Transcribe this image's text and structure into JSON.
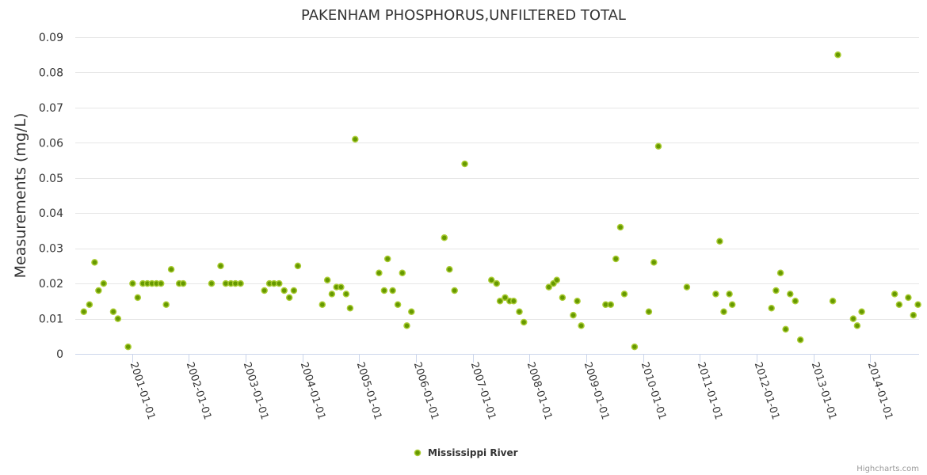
{
  "chart_data": {
    "type": "scatter",
    "title": "PAKENHAM PHOSPHORUS,UNFILTERED TOTAL",
    "ylabel": "Measurements (mg/L)",
    "xlabel": "",
    "ylim": [
      0,
      0.09
    ],
    "yticks": [
      "0",
      "0.01",
      "0.02",
      "0.03",
      "0.04",
      "0.05",
      "0.06",
      "0.07",
      "0.08",
      "0.09"
    ],
    "xlim": [
      2000.0,
      2014.86
    ],
    "xticks": [
      {
        "x": 2001,
        "label": "2001-01-01"
      },
      {
        "x": 2002,
        "label": "2002-01-01"
      },
      {
        "x": 2003,
        "label": "2003-01-01"
      },
      {
        "x": 2004,
        "label": "2004-01-01"
      },
      {
        "x": 2005,
        "label": "2005-01-01"
      },
      {
        "x": 2006,
        "label": "2006-01-01"
      },
      {
        "x": 2007,
        "label": "2007-01-01"
      },
      {
        "x": 2008,
        "label": "2008-01-01"
      },
      {
        "x": 2009,
        "label": "2009-01-01"
      },
      {
        "x": 2010,
        "label": "2010-01-01"
      },
      {
        "x": 2011,
        "label": "2011-01-01"
      },
      {
        "x": 2012,
        "label": "2012-01-01"
      },
      {
        "x": 2013,
        "label": "2013-01-01"
      },
      {
        "x": 2014,
        "label": "2014-01-01"
      }
    ],
    "series": [
      {
        "name": "Mississippi River",
        "color": "#669900",
        "points": [
          [
            2000.15,
            0.012
          ],
          [
            2000.25,
            0.014
          ],
          [
            2000.34,
            0.026
          ],
          [
            2000.41,
            0.018
          ],
          [
            2000.5,
            0.02
          ],
          [
            2000.67,
            0.012
          ],
          [
            2000.75,
            0.01
          ],
          [
            2000.93,
            0.002
          ],
          [
            2001.01,
            0.02
          ],
          [
            2001.1,
            0.016
          ],
          [
            2001.19,
            0.02
          ],
          [
            2001.27,
            0.02
          ],
          [
            2001.35,
            0.02
          ],
          [
            2001.43,
            0.02
          ],
          [
            2001.51,
            0.02
          ],
          [
            2001.6,
            0.014
          ],
          [
            2001.69,
            0.024
          ],
          [
            2001.83,
            0.02
          ],
          [
            2001.9,
            0.02
          ],
          [
            2002.4,
            0.02
          ],
          [
            2002.56,
            0.025
          ],
          [
            2002.65,
            0.02
          ],
          [
            2002.74,
            0.02
          ],
          [
            2002.82,
            0.02
          ],
          [
            2002.91,
            0.02
          ],
          [
            2003.33,
            0.018
          ],
          [
            2003.42,
            0.02
          ],
          [
            2003.5,
            0.02
          ],
          [
            2003.59,
            0.02
          ],
          [
            2003.68,
            0.018
          ],
          [
            2003.77,
            0.016
          ],
          [
            2003.85,
            0.018
          ],
          [
            2003.92,
            0.025
          ],
          [
            2004.35,
            0.014
          ],
          [
            2004.44,
            0.021
          ],
          [
            2004.52,
            0.017
          ],
          [
            2004.6,
            0.019
          ],
          [
            2004.68,
            0.019
          ],
          [
            2004.77,
            0.017
          ],
          [
            2004.84,
            0.013
          ],
          [
            2004.93,
            0.061
          ],
          [
            2005.35,
            0.023
          ],
          [
            2005.44,
            0.018
          ],
          [
            2005.5,
            0.027
          ],
          [
            2005.59,
            0.018
          ],
          [
            2005.68,
            0.014
          ],
          [
            2005.76,
            0.023
          ],
          [
            2005.84,
            0.008
          ],
          [
            2005.92,
            0.012
          ],
          [
            2006.5,
            0.033
          ],
          [
            2006.59,
            0.024
          ],
          [
            2006.68,
            0.018
          ],
          [
            2006.86,
            0.054
          ],
          [
            2007.33,
            0.021
          ],
          [
            2007.42,
            0.02
          ],
          [
            2007.48,
            0.015
          ],
          [
            2007.57,
            0.016
          ],
          [
            2007.65,
            0.015
          ],
          [
            2007.72,
            0.015
          ],
          [
            2007.82,
            0.012
          ],
          [
            2007.9,
            0.009
          ],
          [
            2008.34,
            0.019
          ],
          [
            2008.42,
            0.02
          ],
          [
            2008.48,
            0.021
          ],
          [
            2008.58,
            0.016
          ],
          [
            2008.77,
            0.011
          ],
          [
            2008.84,
            0.015
          ],
          [
            2008.91,
            0.008
          ],
          [
            2009.34,
            0.014
          ],
          [
            2009.43,
            0.014
          ],
          [
            2009.52,
            0.027
          ],
          [
            2009.6,
            0.036
          ],
          [
            2009.67,
            0.017
          ],
          [
            2009.85,
            0.002
          ],
          [
            2010.1,
            0.012
          ],
          [
            2010.19,
            0.026
          ],
          [
            2010.27,
            0.059
          ],
          [
            2010.77,
            0.019
          ],
          [
            2011.28,
            0.017
          ],
          [
            2011.35,
            0.032
          ],
          [
            2011.42,
            0.012
          ],
          [
            2011.52,
            0.017
          ],
          [
            2011.57,
            0.014
          ],
          [
            2012.26,
            0.013
          ],
          [
            2012.34,
            0.018
          ],
          [
            2012.42,
            0.023
          ],
          [
            2012.51,
            0.007
          ],
          [
            2012.59,
            0.017
          ],
          [
            2012.68,
            0.015
          ],
          [
            2012.77,
            0.004
          ],
          [
            2013.34,
            0.015
          ],
          [
            2013.43,
            0.085
          ],
          [
            2013.7,
            0.01
          ],
          [
            2013.77,
            0.008
          ],
          [
            2013.85,
            0.012
          ],
          [
            2014.43,
            0.017
          ],
          [
            2014.51,
            0.014
          ],
          [
            2014.67,
            0.016
          ],
          [
            2014.76,
            0.011
          ],
          [
            2014.84,
            0.014
          ]
        ]
      }
    ],
    "legend": "bottom-center"
  },
  "credits": "Highcharts.com"
}
